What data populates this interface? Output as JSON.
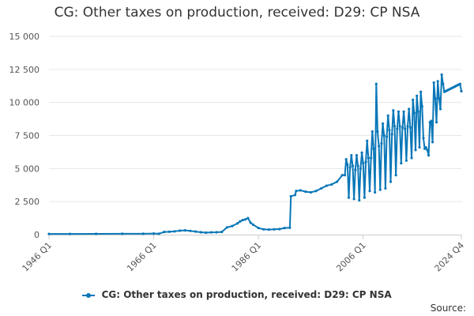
{
  "chart_data": {
    "type": "line",
    "title": "CG: Other taxes on production, received: D29: CP NSA",
    "xlabel": "",
    "ylabel": "",
    "ylim": [
      0,
      15000
    ],
    "grid": true,
    "legend_position": "bottom",
    "y_ticks": [
      0,
      2500,
      5000,
      7500,
      10000,
      12500,
      15000
    ],
    "y_tick_labels": [
      "0",
      "2 500",
      "5 000",
      "7 500",
      "10 000",
      "12 500",
      "15 000"
    ],
    "x_ticks": [
      "1946 Q1",
      "1966 Q1",
      "1986 Q1",
      "2006 Q1",
      "2024 Q4"
    ],
    "series": [
      {
        "name": "CG: Other taxes on production, received: D29: CP NSA",
        "color": "#0a77b8",
        "x": [
          1946.0,
          1950.0,
          1955.0,
          1960.0,
          1964.0,
          1966.0,
          1967.0,
          1968.0,
          1969.0,
          1970.0,
          1971.0,
          1972.0,
          1973.0,
          1974.0,
          1975.0,
          1976.0,
          1977.0,
          1978.0,
          1979.0,
          1980.0,
          1981.0,
          1982.0,
          1982.5,
          1983.0,
          1983.5,
          1984.0,
          1984.5,
          1985.0,
          1986.0,
          1987.0,
          1988.0,
          1989.0,
          1990.0,
          1991.0,
          1992.0,
          1992.2,
          1993.0,
          1993.2,
          1994.0,
          1995.0,
          1996.0,
          1997.0,
          1998.0,
          1999.0,
          2000.0,
          2001.0,
          2002.0,
          2002.5,
          2002.75,
          2003.0,
          2003.25,
          2003.5,
          2003.75,
          2004.0,
          2004.25,
          2004.5,
          2004.75,
          2005.0,
          2005.25,
          2005.5,
          2005.75,
          2006.0,
          2006.25,
          2006.5,
          2006.75,
          2007.0,
          2007.25,
          2007.5,
          2007.75,
          2008.0,
          2008.25,
          2008.5,
          2008.75,
          2009.0,
          2009.25,
          2009.5,
          2009.75,
          2010.0,
          2010.25,
          2010.5,
          2010.75,
          2011.0,
          2011.25,
          2011.5,
          2011.75,
          2012.0,
          2012.25,
          2012.5,
          2012.75,
          2013.0,
          2013.25,
          2013.5,
          2013.75,
          2014.0,
          2014.25,
          2014.5,
          2014.75,
          2015.0,
          2015.25,
          2015.5,
          2015.75,
          2016.0,
          2016.25,
          2016.5,
          2016.75,
          2017.0,
          2017.25,
          2017.5,
          2017.75,
          2018.0,
          2018.25,
          2018.5,
          2018.75,
          2019.0,
          2019.25,
          2019.5,
          2019.75,
          2020.0,
          2020.25,
          2020.5,
          2020.75,
          2021.0,
          2021.25,
          2021.5,
          2021.75,
          2022.0,
          2022.25,
          2022.5,
          2022.75,
          2023.0,
          2023.25,
          2023.5,
          2023.75,
          2024.0,
          2024.25,
          2024.5,
          2024.75
        ],
        "values": [
          50,
          55,
          60,
          65,
          70,
          80,
          70,
          200,
          220,
          250,
          300,
          320,
          280,
          230,
          180,
          150,
          170,
          180,
          200,
          550,
          650,
          850,
          1000,
          1100,
          1150,
          1250,
          900,
          750,
          500,
          400,
          380,
          400,
          420,
          500,
          520,
          2900,
          3000,
          3300,
          3350,
          3250,
          3200,
          3300,
          3500,
          3700,
          3800,
          4000,
          4500,
          4500,
          5700,
          5300,
          2800,
          5100,
          6000,
          5200,
          2700,
          4900,
          6000,
          5200,
          2600,
          5000,
          6200,
          5400,
          2800,
          5500,
          7100,
          5800,
          3300,
          5800,
          7800,
          6500,
          3200,
          11400,
          7800,
          6700,
          3400,
          6900,
          8400,
          7500,
          3500,
          7400,
          9000,
          7900,
          4000,
          7600,
          9400,
          8200,
          4500,
          8000,
          9300,
          8200,
          5400,
          8100,
          9300,
          8000,
          5600,
          8200,
          9500,
          8100,
          5800,
          10200,
          9200,
          6400,
          10500,
          9300,
          6600,
          10800,
          9700,
          7300,
          6500,
          6600,
          6400,
          6000,
          8500,
          8600,
          7000,
          11500,
          10300,
          8500,
          11600,
          10300,
          9500,
          12100,
          11400,
          10800,
          10850,
          10900,
          10950,
          11000,
          11050,
          11100,
          11150,
          11200,
          11250,
          11300,
          11350,
          11400,
          10850
        ]
      }
    ]
  },
  "source_text": "Source:"
}
